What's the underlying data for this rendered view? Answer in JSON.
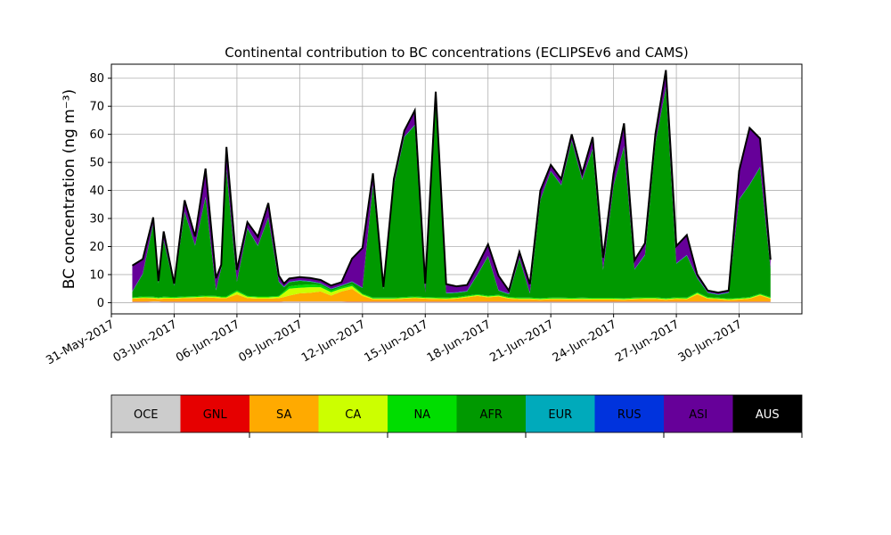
{
  "chart_data": {
    "type": "area",
    "title": "Continental contribution to BC concentrations (ECLIPSEv6 and CAMS)",
    "ylabel": "BC concentration (ng m⁻³)",
    "xlabel": "",
    "ylim": [
      -4,
      85
    ],
    "xlim": [
      "2017-05-31",
      "2017-07-03"
    ],
    "x_ticks": [
      "31-May-2017",
      "03-Jun-2017",
      "06-Jun-2017",
      "09-Jun-2017",
      "12-Jun-2017",
      "15-Jun-2017",
      "18-Jun-2017",
      "21-Jun-2017",
      "24-Jun-2017",
      "27-Jun-2017",
      "30-Jun-2017"
    ],
    "y_ticks": [
      0,
      10,
      20,
      30,
      40,
      50,
      60,
      70,
      80
    ],
    "grid": true,
    "x": [
      "2017-06-01",
      "2017-06-01T12",
      "2017-06-02",
      "2017-06-02T06",
      "2017-06-02T12",
      "2017-06-03",
      "2017-06-03T12",
      "2017-06-04",
      "2017-06-04T12",
      "2017-06-05",
      "2017-06-05T06",
      "2017-06-05T12",
      "2017-06-06",
      "2017-06-06T12",
      "2017-06-07",
      "2017-06-07T12",
      "2017-06-08",
      "2017-06-08T06",
      "2017-06-08T12",
      "2017-06-09",
      "2017-06-09T12",
      "2017-06-10",
      "2017-06-10T12",
      "2017-06-11",
      "2017-06-11T12",
      "2017-06-12",
      "2017-06-12T12",
      "2017-06-13",
      "2017-06-13T12",
      "2017-06-14",
      "2017-06-14T12",
      "2017-06-15",
      "2017-06-15T12",
      "2017-06-16",
      "2017-06-16T12",
      "2017-06-17",
      "2017-06-17T12",
      "2017-06-18",
      "2017-06-18T12",
      "2017-06-19",
      "2017-06-19T12",
      "2017-06-20",
      "2017-06-20T12",
      "2017-06-21",
      "2017-06-21T12",
      "2017-06-22",
      "2017-06-22T12",
      "2017-06-23",
      "2017-06-23T12",
      "2017-06-24",
      "2017-06-24T12",
      "2017-06-25",
      "2017-06-25T12",
      "2017-06-26",
      "2017-06-26T12",
      "2017-06-27",
      "2017-06-27T12",
      "2017-06-28",
      "2017-06-28T12",
      "2017-06-29",
      "2017-06-29T12",
      "2017-06-30",
      "2017-06-30T12",
      "2017-07-01",
      "2017-07-01T12"
    ],
    "series": [
      {
        "name": "OCE",
        "color": "#cccccc",
        "values": [
          0.3,
          0.3,
          0.4,
          0.4,
          0.3,
          0.3,
          0.3,
          0.3,
          0.3,
          0.3,
          0.3,
          0.3,
          0.3,
          0.3,
          0.3,
          0.3,
          0.3,
          0.4,
          0.4,
          0.4,
          0.4,
          0.4,
          0.4,
          0.4,
          0.3,
          0.3,
          0.3,
          0.3,
          0.3,
          0.3,
          0.3,
          0.3,
          0.3,
          0.3,
          0.3,
          0.3,
          0.3,
          0.3,
          0.3,
          0.3,
          0.3,
          0.3,
          0.3,
          0.3,
          0.3,
          0.3,
          0.3,
          0.3,
          0.3,
          0.3,
          0.3,
          0.3,
          0.3,
          0.3,
          0.3,
          0.3,
          0.3,
          0.3,
          0.3,
          0.3,
          0.3,
          0.3,
          0.3,
          0.3,
          0.3
        ]
      },
      {
        "name": "GNL",
        "color": "#e60000",
        "values": [
          0.1,
          0.1,
          0.1,
          0.1,
          0.1,
          0.1,
          0.1,
          0.1,
          0.1,
          0.1,
          0.1,
          0.1,
          0.1,
          0.1,
          0.1,
          0.1,
          0.1,
          0.1,
          0.1,
          0.1,
          0.1,
          0.1,
          0.1,
          0.1,
          0.1,
          0.1,
          0.1,
          0.1,
          0.1,
          0.1,
          0.1,
          0.1,
          0.1,
          0.1,
          0.1,
          0.1,
          0.1,
          0.1,
          0.1,
          0.1,
          0.1,
          0.1,
          0.1,
          0.1,
          0.1,
          0.1,
          0.1,
          0.1,
          0.1,
          0.1,
          0.1,
          0.1,
          0.1,
          0.1,
          0.1,
          0.1,
          0.1,
          0.1,
          0.1,
          0.1,
          0.1,
          0.1,
          0.1,
          0.1,
          0.1
        ]
      },
      {
        "name": "SA",
        "color": "#ffaa00",
        "values": [
          1.0,
          1.2,
          1.0,
          0.8,
          1.0,
          1.0,
          1.2,
          1.3,
          1.5,
          1.3,
          1.2,
          1.2,
          2.5,
          1.2,
          1.0,
          1.0,
          1.2,
          1.5,
          2.0,
          2.8,
          3.0,
          3.5,
          2.0,
          3.5,
          4.5,
          2.0,
          0.8,
          0.8,
          0.8,
          1.0,
          1.2,
          1.0,
          0.9,
          0.8,
          1.0,
          1.5,
          2.0,
          1.5,
          1.8,
          1.0,
          0.8,
          0.8,
          0.6,
          0.8,
          0.8,
          0.7,
          0.8,
          0.7,
          0.7,
          0.7,
          0.6,
          0.8,
          0.9,
          0.9,
          0.6,
          0.9,
          0.8,
          2.5,
          1.0,
          0.8,
          0.5,
          0.7,
          1.0,
          2.2,
          1.0
        ]
      },
      {
        "name": "CA",
        "color": "#ccff00",
        "values": [
          0.2,
          0.3,
          0.3,
          0.3,
          0.4,
          0.3,
          0.3,
          0.3,
          0.3,
          0.4,
          0.3,
          0.3,
          1.0,
          0.5,
          0.5,
          0.5,
          0.5,
          1.5,
          2.5,
          2.0,
          2.0,
          1.5,
          1.2,
          1.0,
          1.0,
          0.5,
          0.3,
          0.3,
          0.3,
          0.3,
          0.3,
          0.3,
          0.3,
          0.3,
          0.3,
          0.3,
          0.3,
          0.3,
          0.3,
          0.3,
          0.3,
          0.3,
          0.3,
          0.3,
          0.3,
          0.3,
          0.3,
          0.3,
          0.3,
          0.3,
          0.3,
          0.3,
          0.3,
          0.3,
          0.3,
          0.3,
          0.3,
          0.5,
          0.3,
          0.3,
          0.3,
          0.3,
          0.3,
          0.3,
          0.3
        ]
      },
      {
        "name": "NA",
        "color": "#00dd00",
        "values": [
          0.3,
          0.3,
          0.3,
          0.3,
          0.3,
          0.3,
          0.3,
          0.3,
          0.3,
          0.3,
          0.3,
          0.3,
          0.5,
          0.3,
          0.3,
          0.3,
          0.3,
          0.5,
          0.8,
          1.0,
          1.0,
          0.8,
          0.6,
          0.5,
          0.5,
          0.3,
          0.3,
          0.3,
          0.3,
          0.3,
          0.3,
          0.3,
          0.3,
          0.3,
          0.3,
          0.3,
          0.3,
          0.3,
          0.3,
          0.3,
          0.3,
          0.3,
          0.3,
          0.3,
          0.3,
          0.3,
          0.3,
          0.3,
          0.3,
          0.3,
          0.3,
          0.3,
          0.3,
          0.3,
          0.3,
          0.3,
          0.3,
          0.3,
          0.3,
          0.3,
          0.3,
          0.3,
          0.3,
          0.3,
          0.3
        ]
      },
      {
        "name": "AFR",
        "color": "#009900",
        "values": [
          2,
          8,
          26,
          5,
          20,
          4,
          30,
          18,
          35,
          2,
          10,
          45,
          3,
          24,
          18,
          28,
          5,
          1.5,
          1.5,
          1.5,
          1,
          0.5,
          0.5,
          0.5,
          1,
          2,
          40,
          3,
          40,
          57,
          61,
          1.5,
          72,
          1.5,
          1.5,
          1.5,
          7,
          14,
          1.5,
          1,
          14,
          1.5,
          35,
          45,
          40,
          56,
          42,
          53,
          10,
          40,
          54,
          10,
          15,
          55,
          75,
          12,
          15,
          5,
          1.5,
          1,
          2,
          35,
          40,
          45,
          10
        ]
      },
      {
        "name": "EUR",
        "color": "#00aabb",
        "values": [
          0.1,
          0.1,
          0.1,
          0.1,
          0.1,
          0.1,
          0.1,
          0.1,
          0.1,
          0.1,
          0.1,
          0.1,
          0.1,
          0.1,
          0.1,
          0.1,
          0.1,
          0.1,
          0.1,
          0.1,
          0.1,
          0.1,
          0.1,
          0.1,
          0.1,
          0.1,
          0.1,
          0.1,
          0.1,
          0.1,
          0.1,
          0.1,
          0.1,
          0.1,
          0.1,
          0.1,
          0.1,
          0.1,
          0.1,
          0.1,
          0.1,
          0.1,
          0.1,
          0.1,
          0.1,
          0.1,
          0.1,
          0.1,
          0.1,
          0.1,
          0.1,
          0.1,
          0.1,
          0.1,
          0.1,
          0.1,
          0.1,
          0.1,
          0.1,
          0.1,
          0.1,
          0.1,
          0.1,
          0.1,
          0.1
        ]
      },
      {
        "name": "RUS",
        "color": "#0033dd",
        "values": [
          0.1,
          0.1,
          0.1,
          0.1,
          0.1,
          0.1,
          0.1,
          0.1,
          0.1,
          0.1,
          0.1,
          0.1,
          0.1,
          0.1,
          0.1,
          0.1,
          0.1,
          0.1,
          0.1,
          0.1,
          0.1,
          0.1,
          0.1,
          0.1,
          0.1,
          0.1,
          0.1,
          0.1,
          0.1,
          0.1,
          0.1,
          0.1,
          0.1,
          0.1,
          0.1,
          0.1,
          0.1,
          0.1,
          0.1,
          0.1,
          0.1,
          0.1,
          0.1,
          0.1,
          0.1,
          0.1,
          0.1,
          0.1,
          0.1,
          0.1,
          0.1,
          0.1,
          0.1,
          0.1,
          0.1,
          0.1,
          0.1,
          0.1,
          0.1,
          0.1,
          0.1,
          0.1,
          0.1,
          0.1,
          0.1
        ]
      },
      {
        "name": "ASI",
        "color": "#660099",
        "values": [
          9,
          5,
          2,
          0.5,
          3,
          0.5,
          4,
          3,
          10,
          4,
          1,
          8,
          4,
          2,
          3,
          5,
          2,
          1,
          1,
          1,
          1,
          1,
          1,
          1,
          8,
          14,
          4,
          0.5,
          2,
          2,
          5,
          3,
          1,
          3,
          2,
          2,
          3,
          4,
          5,
          1,
          2,
          3,
          3,
          2,
          2,
          2,
          2,
          4,
          4,
          4,
          8,
          3,
          4,
          3,
          6,
          6,
          7,
          1,
          0.5,
          0.5,
          0.5,
          10,
          20,
          10,
          3
        ]
      },
      {
        "name": "AUS",
        "color": "#000000",
        "values": [
          0.1,
          0.1,
          0.1,
          0.1,
          0.1,
          0.1,
          0.1,
          0.1,
          0.1,
          0.1,
          0.1,
          0.1,
          0.1,
          0.1,
          0.1,
          0.1,
          0.1,
          0.1,
          0.1,
          0.1,
          0.1,
          0.1,
          0.1,
          0.1,
          0.1,
          0.1,
          0.1,
          0.1,
          0.1,
          0.1,
          0.1,
          0.1,
          0.1,
          0.1,
          0.1,
          0.1,
          0.1,
          0.1,
          0.1,
          0.1,
          0.1,
          0.1,
          0.1,
          0.1,
          0.1,
          0.1,
          0.1,
          0.1,
          0.1,
          0.1,
          0.1,
          0.1,
          0.1,
          0.1,
          0.1,
          0.1,
          0.1,
          0.1,
          0.1,
          0.1,
          0.1,
          0.1,
          0.1,
          0.1,
          0.1
        ]
      }
    ],
    "legend": {
      "placement": "bottom",
      "style": "colorbar",
      "entries": [
        "OCE",
        "GNL",
        "SA",
        "CA",
        "NA",
        "AFR",
        "EUR",
        "RUS",
        "ASI",
        "AUS"
      ]
    }
  }
}
